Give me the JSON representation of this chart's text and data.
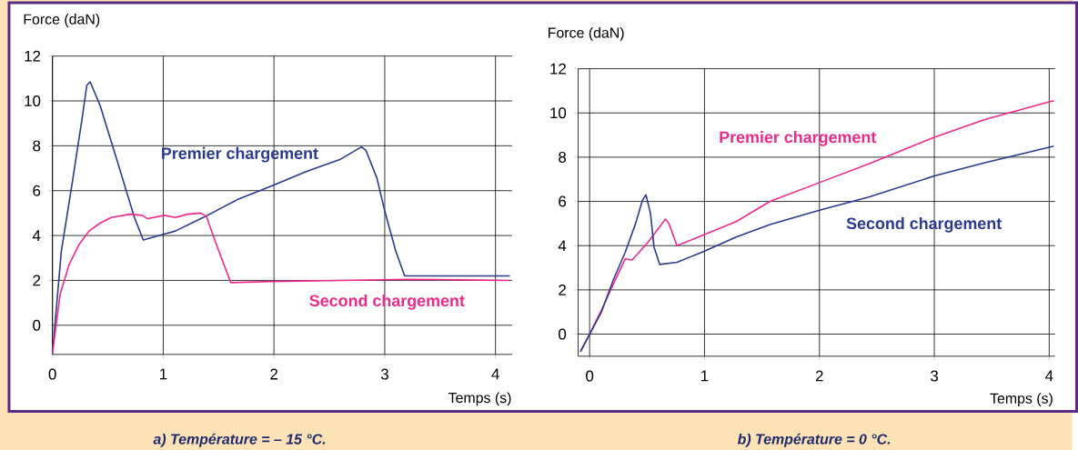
{
  "chart_data": [
    {
      "type": "line",
      "xlabel": "Temps (s)",
      "ylabel": "Force (daN)",
      "xlim": [
        0,
        4.15
      ],
      "ylim": [
        -1.3,
        12
      ],
      "xticks": [
        0,
        1,
        2,
        3,
        4
      ],
      "yticks": [
        0,
        2,
        4,
        6,
        8,
        10,
        12
      ],
      "grid": true,
      "marker": "none",
      "annotations": [
        "a)  Température = – 15 °C."
      ],
      "series": [
        {
          "name": "Premier chargement",
          "color": "#2b3990",
          "x": [
            0,
            0.08,
            0.18,
            0.27,
            0.31,
            0.34,
            0.43,
            0.58,
            0.74,
            0.82,
            1.0,
            1.11,
            1.36,
            1.67,
            2.0,
            2.29,
            2.6,
            2.79,
            2.83,
            2.93,
            3.0,
            3.1,
            3.18,
            3.53,
            4.13
          ],
          "values": [
            -1.25,
            3.3,
            6.4,
            9.3,
            10.7,
            10.85,
            9.8,
            7.4,
            4.8,
            3.8,
            4.05,
            4.2,
            4.8,
            5.6,
            6.25,
            6.85,
            7.4,
            7.95,
            7.8,
            6.55,
            5.1,
            3.3,
            2.2,
            2.2,
            2.2
          ]
        },
        {
          "name": "Second chargement",
          "color": "#ec2a8c",
          "x": [
            0,
            0.07,
            0.15,
            0.24,
            0.33,
            0.43,
            0.53,
            0.7,
            0.81,
            0.86,
            1.01,
            1.11,
            1.22,
            1.34,
            1.39,
            1.48,
            1.61,
            1.98,
            2.6,
            3.22,
            4.13
          ],
          "values": [
            -1.25,
            1.4,
            2.7,
            3.6,
            4.2,
            4.55,
            4.8,
            4.95,
            4.9,
            4.75,
            4.9,
            4.8,
            4.95,
            5.0,
            4.85,
            3.6,
            1.9,
            1.95,
            2.0,
            2.05,
            2.0
          ]
        }
      ]
    },
    {
      "type": "line",
      "xlabel": "Temps (s)",
      "ylabel": "Force (daN)",
      "xlim": [
        -0.1,
        4.05
      ],
      "ylim": [
        -1,
        12
      ],
      "xticks": [
        0,
        1,
        2,
        3,
        4
      ],
      "yticks": [
        0,
        2,
        4,
        6,
        8,
        10,
        12
      ],
      "grid": true,
      "marker": "none",
      "annotations": [
        "b)  Température = 0 °C."
      ],
      "series": [
        {
          "name": "Premier chargement",
          "color": "#ec2a8c",
          "x": [
            -0.08,
            0,
            0.1,
            0.21,
            0.31,
            0.37,
            0.5,
            0.66,
            0.69,
            0.76,
            1.0,
            1.28,
            1.57,
            2.0,
            2.43,
            3.0,
            3.44,
            4.0,
            4.04
          ],
          "values": [
            -0.8,
            0,
            1.05,
            2.3,
            3.4,
            3.35,
            4.1,
            5.2,
            5.0,
            4.0,
            4.5,
            5.1,
            6.0,
            6.85,
            7.7,
            8.9,
            9.7,
            10.5,
            10.55
          ]
        },
        {
          "name": "Second chargement",
          "color": "#2b3990",
          "x": [
            -0.08,
            0,
            0.1,
            0.21,
            0.31,
            0.4,
            0.46,
            0.49,
            0.53,
            0.56,
            0.61,
            0.76,
            1.0,
            1.28,
            1.57,
            2.0,
            2.43,
            3.0,
            3.44,
            4.0,
            4.04
          ],
          "values": [
            -0.8,
            0,
            0.97,
            2.5,
            3.7,
            5.0,
            6.05,
            6.3,
            5.45,
            3.95,
            3.15,
            3.25,
            3.75,
            4.4,
            4.95,
            5.6,
            6.2,
            7.15,
            7.75,
            8.45,
            8.5
          ]
        }
      ]
    }
  ]
}
